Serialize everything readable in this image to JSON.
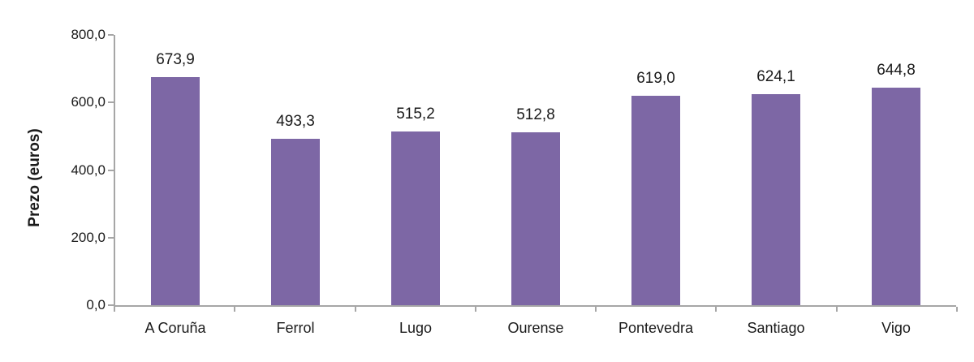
{
  "chart_data": {
    "type": "bar",
    "title": "",
    "xlabel": "",
    "ylabel": "Prezo (euros)",
    "categories": [
      "A Coruña",
      "Ferrol",
      "Lugo",
      "Ourense",
      "Pontevedra",
      "Santiago",
      "Vigo"
    ],
    "values": [
      673.9,
      493.3,
      515.2,
      512.8,
      619.0,
      624.1,
      644.8
    ],
    "value_labels": [
      "673,9",
      "493,3",
      "515,2",
      "512,8",
      "619,0",
      "624,1",
      "644,8"
    ],
    "ylim": [
      0,
      800
    ],
    "yticks": [
      0,
      200,
      400,
      600,
      800
    ],
    "ytick_labels": [
      "0,0",
      "200,0",
      "400,0",
      "600,0",
      "800,0"
    ],
    "grid": false,
    "legend": "none",
    "colors": {
      "bar": "#7D67A5",
      "axis": "#A6A6A6",
      "text": "#1A1A1A"
    }
  }
}
